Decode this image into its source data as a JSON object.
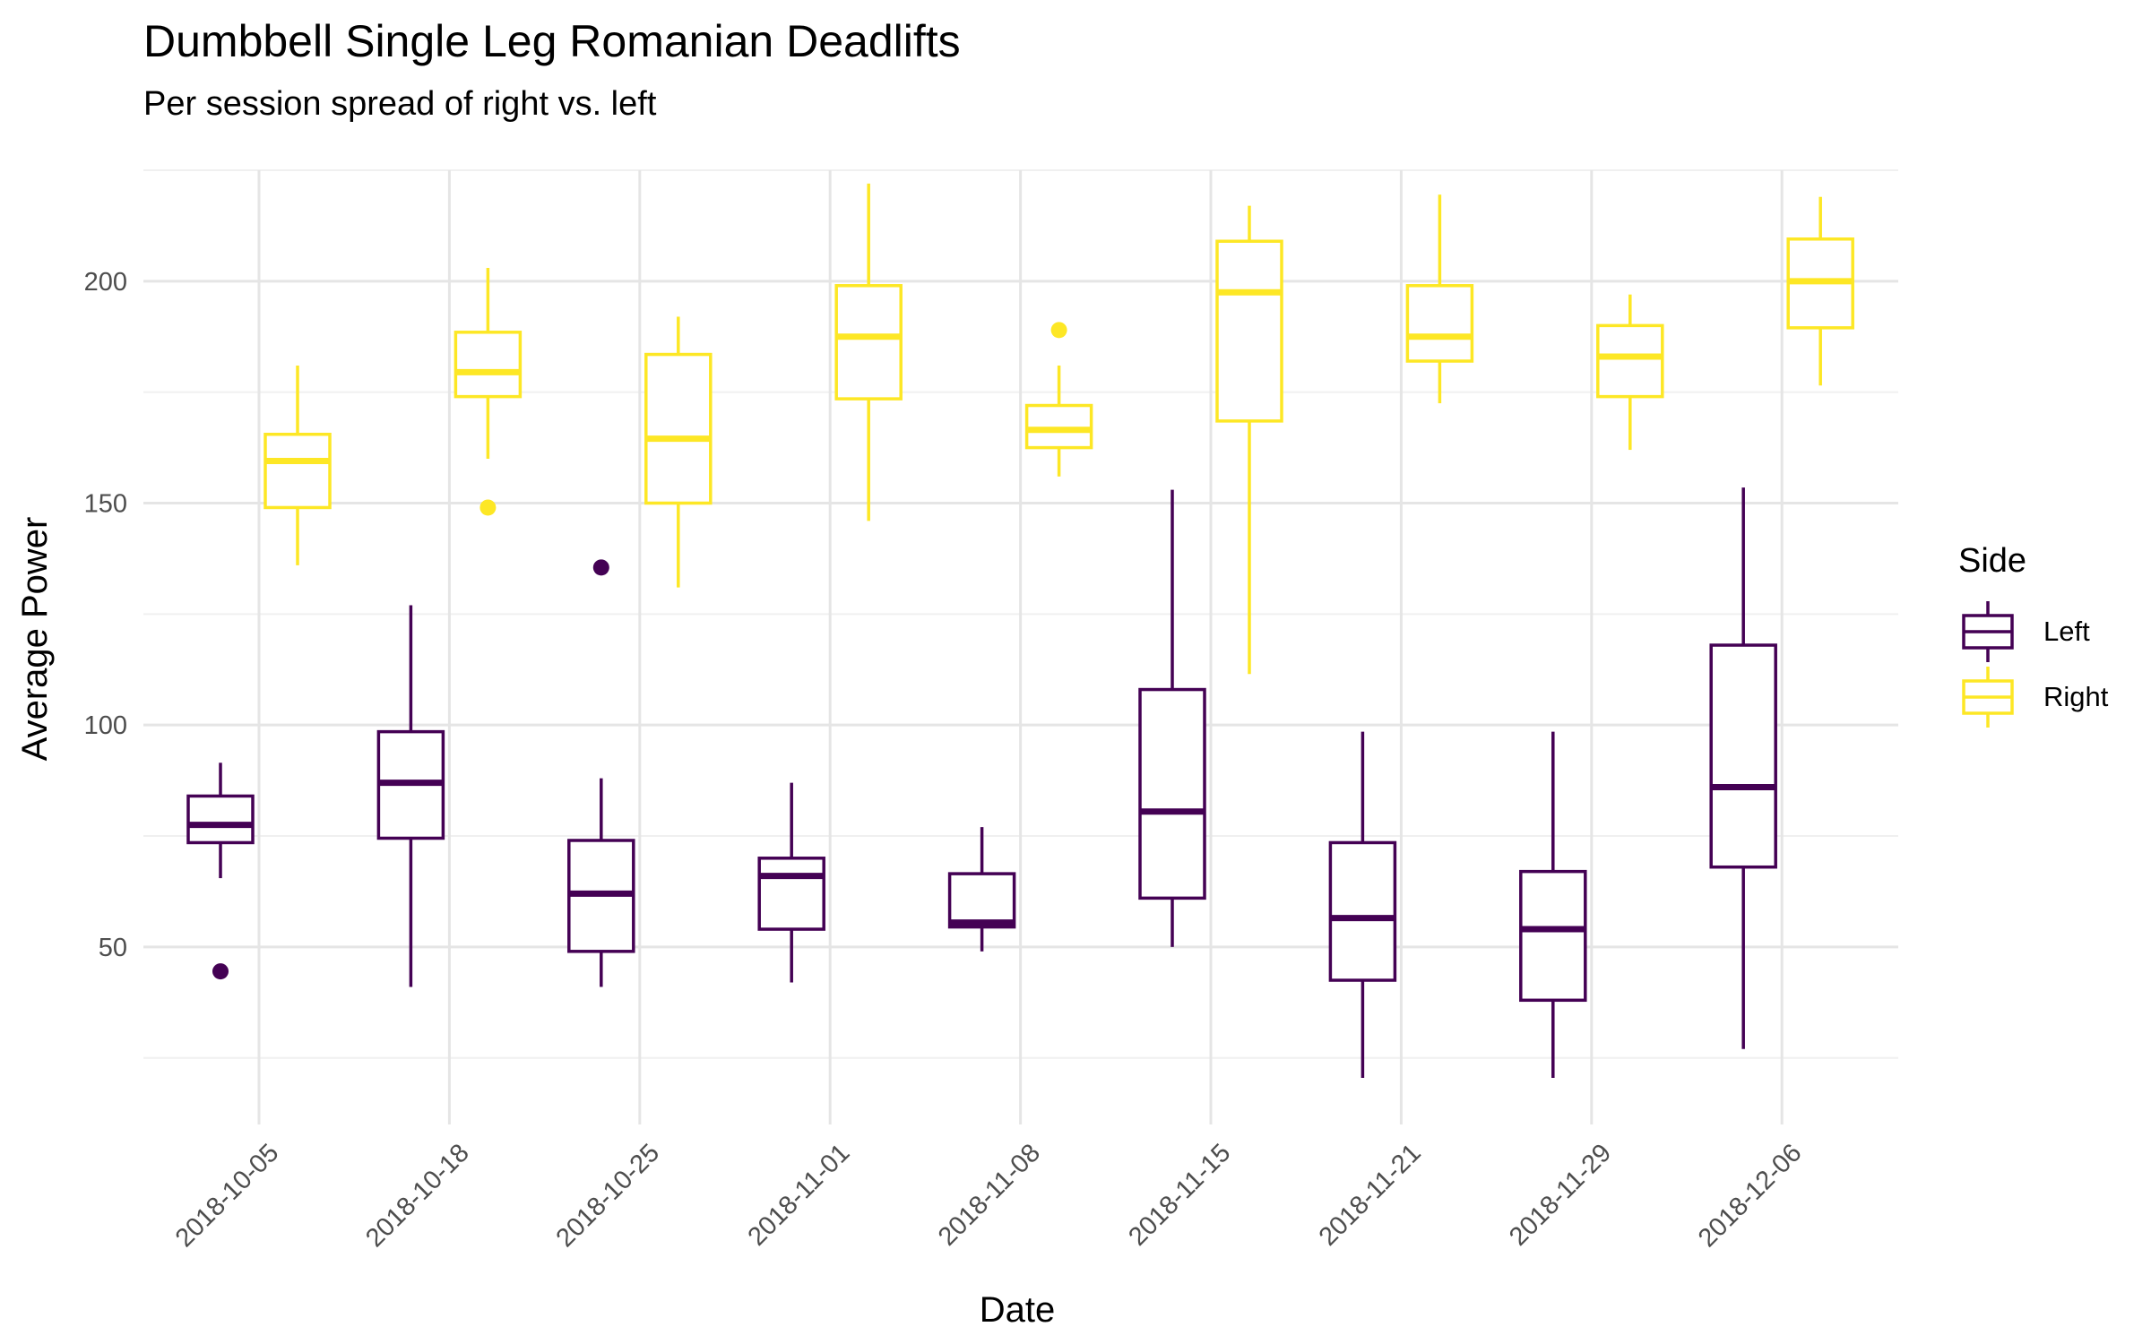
{
  "chart_data": {
    "type": "boxplot",
    "title": "Dumbbell Single Leg Romanian Deadlifts",
    "subtitle": "Per session spread of right vs. left",
    "xlabel": "Date",
    "ylabel": "Average Power",
    "ylim": [
      10,
      225
    ],
    "yticks": [
      50,
      100,
      150,
      200
    ],
    "grid": true,
    "legend": {
      "title": "Side",
      "position": "right",
      "entries": [
        "Left",
        "Right"
      ]
    },
    "categories": [
      "2018-10-05",
      "2018-10-18",
      "2018-10-25",
      "2018-11-01",
      "2018-11-08",
      "2018-11-15",
      "2018-11-21",
      "2018-11-29",
      "2018-12-06"
    ],
    "series": [
      {
        "name": "Left",
        "color": "#440154",
        "boxes": [
          {
            "min": 65.5,
            "q1": 73.5,
            "median": 77.5,
            "q3": 84,
            "max": 91.5,
            "outliers": [
              44.5
            ]
          },
          {
            "min": 41,
            "q1": 74.5,
            "median": 87,
            "q3": 98.5,
            "max": 127,
            "outliers": []
          },
          {
            "min": 41,
            "q1": 49,
            "median": 62,
            "q3": 74,
            "max": 88,
            "outliers": [
              135.5
            ]
          },
          {
            "min": 42,
            "q1": 54,
            "median": 66,
            "q3": 70,
            "max": 87,
            "outliers": []
          },
          {
            "min": 49,
            "q1": 54.5,
            "median": 55.5,
            "q3": 66.5,
            "max": 77,
            "outliers": []
          },
          {
            "min": 50,
            "q1": 61,
            "median": 80.5,
            "q3": 108,
            "max": 153,
            "outliers": []
          },
          {
            "min": 20.5,
            "q1": 42.5,
            "median": 56.5,
            "q3": 73.5,
            "max": 98.5,
            "outliers": []
          },
          {
            "min": 20.5,
            "q1": 38,
            "median": 54,
            "q3": 67,
            "max": 98.5,
            "outliers": []
          },
          {
            "min": 27,
            "q1": 68,
            "median": 86,
            "q3": 118,
            "max": 153.5,
            "outliers": []
          }
        ]
      },
      {
        "name": "Right",
        "color": "#FDE725",
        "boxes": [
          {
            "min": 136,
            "q1": 149,
            "median": 159.5,
            "q3": 165.5,
            "max": 181,
            "outliers": []
          },
          {
            "min": 160,
            "q1": 174,
            "median": 179.5,
            "q3": 188.5,
            "max": 203,
            "outliers": [
              149
            ]
          },
          {
            "min": 131,
            "q1": 150,
            "median": 164.5,
            "q3": 183.5,
            "max": 192,
            "outliers": []
          },
          {
            "min": 146,
            "q1": 173.5,
            "median": 187.5,
            "q3": 199,
            "max": 222,
            "outliers": []
          },
          {
            "min": 156,
            "q1": 162.5,
            "median": 166.5,
            "q3": 172,
            "max": 181,
            "outliers": [
              189
            ]
          },
          {
            "min": 111.5,
            "q1": 168.5,
            "median": 197.5,
            "q3": 209,
            "max": 217,
            "outliers": []
          },
          {
            "min": 172.5,
            "q1": 182,
            "median": 187.5,
            "q3": 199,
            "max": 219.5,
            "outliers": []
          },
          {
            "min": 162,
            "q1": 174,
            "median": 183,
            "q3": 190,
            "max": 197,
            "outliers": []
          },
          {
            "min": 176.5,
            "q1": 189.5,
            "median": 200,
            "q3": 209.5,
            "max": 219,
            "outliers": []
          }
        ]
      }
    ]
  }
}
